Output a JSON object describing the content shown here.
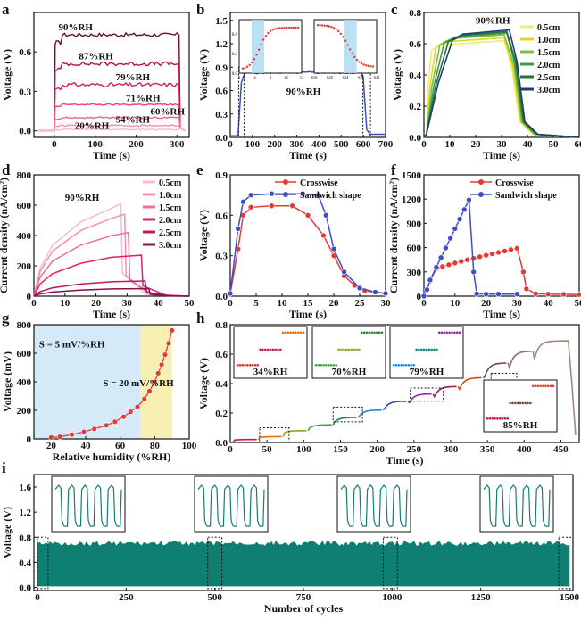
{
  "colors": {
    "pinks": [
      "#e31a6b",
      "#c2185b",
      "#f06292",
      "#f48fb1",
      "#f8bbd0",
      "#7b1040"
    ],
    "blue": "#3d4ec9",
    "red": "#e53935",
    "greens": [
      "#f2eb7a",
      "#e0d822",
      "#7cc045",
      "#3e9a48",
      "#2a6f3a",
      "#1a3e78"
    ],
    "steps": [
      "#c51162",
      "#ef6c00",
      "#9e9d24",
      "#43a047",
      "#00897b",
      "#1e88e5",
      "#3949ab",
      "#8e24aa",
      "#ad1457",
      "#d84315",
      "#6d4c41",
      "#8d6e63",
      "#a1887f"
    ],
    "teal": "#0f7f72",
    "hl_blue": "#a8d8f0",
    "bg_blue": "#d4eaf8",
    "bg_yellow": "#f8efb3"
  },
  "panels": {
    "a": {
      "label": "a"
    },
    "b": {
      "label": "b"
    },
    "c": {
      "label": "c"
    },
    "d": {
      "label": "d"
    },
    "e": {
      "label": "e"
    },
    "f": {
      "label": "f"
    },
    "g": {
      "label": "g"
    },
    "h": {
      "label": "h"
    },
    "i": {
      "label": "i"
    }
  },
  "chart_data": [
    {
      "id": "a",
      "type": "line",
      "xlabel": "Time (s)",
      "ylabel": "Voltage (V)",
      "xlim": [
        -50,
        330
      ],
      "ylim": [
        -0.05,
        0.9
      ],
      "xticks": [
        0,
        100,
        200,
        300
      ],
      "yticks": [
        0.0,
        0.3,
        0.6
      ],
      "series": [
        {
          "name": "90%RH",
          "level": 0.73
        },
        {
          "name": "87%RH",
          "level": 0.51
        },
        {
          "name": "79%RH",
          "level": 0.35
        },
        {
          "name": "71%RH",
          "level": 0.2
        },
        {
          "name": "60%RH",
          "level": 0.1
        },
        {
          "name": "54%RH",
          "level": 0.04
        },
        {
          "name": "20%RH",
          "level": 0.01
        }
      ]
    },
    {
      "id": "b",
      "type": "line",
      "xlabel": "Time (s)",
      "ylabel": "Voltage (V)",
      "xlim": [
        0,
        700
      ],
      "ylim": [
        0,
        1.6
      ],
      "xticks": [
        0,
        100,
        200,
        300,
        400,
        500,
        600,
        700
      ],
      "yticks": [
        0.0,
        0.3,
        0.6,
        0.9,
        1.2,
        1.5
      ],
      "annotation": "90%RH",
      "plateau": 0.83,
      "inset_left": {
        "xticks": [
          0,
          4,
          8,
          12,
          14
        ],
        "yticks": [
          0.0,
          0.3,
          0.6
        ]
      },
      "inset_right": {
        "xticks": [
          616,
          620,
          624,
          628,
          632
        ]
      }
    },
    {
      "id": "c",
      "type": "line",
      "xlabel": "Time (s)",
      "ylabel": "Voltage (V)",
      "xlim": [
        0,
        60
      ],
      "ylim": [
        0,
        0.8
      ],
      "xticks": [
        0,
        10,
        20,
        30,
        40,
        50,
        60
      ],
      "yticks": [
        0.0,
        0.2,
        0.4,
        0.6,
        0.8
      ],
      "annotation": "90%RH",
      "series": [
        {
          "name": "0.5cm",
          "level": 0.62
        },
        {
          "name": "1.0cm",
          "level": 0.64
        },
        {
          "name": "1.5cm",
          "level": 0.66
        },
        {
          "name": "2.0cm",
          "level": 0.67
        },
        {
          "name": "2.5cm",
          "level": 0.68
        },
        {
          "name": "3.0cm",
          "level": 0.69
        }
      ]
    },
    {
      "id": "d",
      "type": "line",
      "xlabel": "Time (s)",
      "ylabel": "Current density (nA/cm²)",
      "xlim": [
        0,
        50
      ],
      "ylim": [
        0,
        800
      ],
      "xticks": [
        0,
        10,
        20,
        30,
        40,
        50
      ],
      "yticks": [
        0,
        200,
        400,
        600,
        800
      ],
      "annotation": "90%RH",
      "series": [
        {
          "name": "0.5cm",
          "level": 610
        },
        {
          "name": "1.0cm",
          "level": 540
        },
        {
          "name": "1.5cm",
          "level": 420
        },
        {
          "name": "2.0cm",
          "level": 270
        },
        {
          "name": "2.5cm",
          "level": 100
        },
        {
          "name": "3.0cm",
          "level": 50
        }
      ]
    },
    {
      "id": "e",
      "type": "line",
      "xlabel": "Time (s)",
      "ylabel": "Voltage (V)",
      "xlim": [
        0,
        30
      ],
      "ylim": [
        0,
        0.9
      ],
      "xticks": [
        0,
        5,
        10,
        15,
        20,
        25,
        30
      ],
      "yticks": [
        0.0,
        0.3,
        0.6,
        0.9
      ],
      "series": [
        {
          "name": "Crosswise",
          "level": 0.67
        },
        {
          "name": "Sandwich shape",
          "level": 0.76
        }
      ]
    },
    {
      "id": "f",
      "type": "line",
      "xlabel": "Time (s)",
      "ylabel": "Current density (nA/cm²)",
      "xlim": [
        0,
        50
      ],
      "ylim": [
        0,
        1500
      ],
      "xticks": [
        0,
        10,
        20,
        30,
        40,
        50
      ],
      "yticks": [
        0,
        300,
        600,
        900,
        1200,
        1500
      ],
      "series": [
        {
          "name": "Crosswise",
          "peak": 600
        },
        {
          "name": "Sandwich shape",
          "peak": 1230
        }
      ]
    },
    {
      "id": "g",
      "type": "scatter",
      "xlabel": "Relative humidity (%RH)",
      "ylabel": "Voltage (mV)",
      "xlim": [
        10,
        100
      ],
      "ylim": [
        0,
        800
      ],
      "xticks": [
        20,
        40,
        60,
        80,
        100
      ],
      "yticks": [
        0,
        200,
        400,
        600,
        800
      ],
      "annotations": [
        "S = 5 mV/%RH",
        "S = 20 mV/%RH"
      ],
      "x": [
        20,
        25,
        32,
        39,
        45,
        52,
        57,
        62,
        66,
        70,
        74,
        77,
        80,
        82,
        84,
        86,
        88,
        90
      ],
      "y": [
        10,
        15,
        30,
        50,
        70,
        95,
        120,
        155,
        190,
        225,
        280,
        335,
        400,
        460,
        520,
        590,
        670,
        760
      ]
    },
    {
      "id": "h",
      "type": "line",
      "xlabel": "Time (s)",
      "ylabel": "Voltage (V)",
      "xlim": [
        0,
        475
      ],
      "ylim": [
        0,
        0.8
      ],
      "xticks": [
        0,
        50,
        100,
        150,
        200,
        250,
        300,
        350,
        400,
        450
      ],
      "yticks": [
        0.0,
        0.2,
        0.4,
        0.6,
        0.8
      ],
      "inset_labels": [
        "34%RH",
        "70%RH",
        "79%RH",
        "85%RH"
      ],
      "step_levels": [
        0.02,
        0.04,
        0.08,
        0.12,
        0.17,
        0.22,
        0.28,
        0.33,
        0.38,
        0.44,
        0.54,
        0.62,
        0.69
      ]
    },
    {
      "id": "i",
      "type": "area",
      "xlabel": "Number of cycles",
      "ylabel": "Voltage (V)",
      "xlim": [
        -10,
        1510
      ],
      "ylim": [
        -0.05,
        1.8
      ],
      "xticks": [
        0,
        250,
        500,
        750,
        1000,
        1250,
        1500
      ],
      "yticks": [
        0.0,
        0.4,
        0.8,
        1.2,
        1.6
      ],
      "band": [
        0.02,
        0.74
      ]
    }
  ]
}
